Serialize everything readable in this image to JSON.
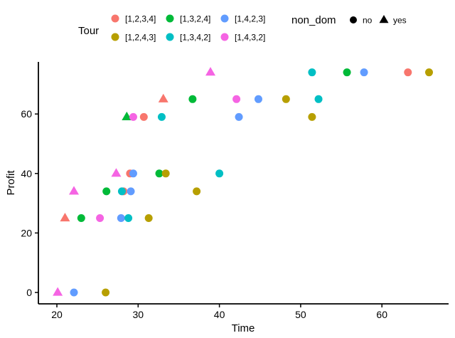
{
  "chart_data": {
    "type": "scatter",
    "title": "",
    "xlabel": "Time",
    "ylabel": "Profit",
    "xlim": [
      17.8,
      68.5
    ],
    "ylim": [
      -3.8,
      77
    ],
    "x_ticks": [
      20,
      30,
      40,
      50,
      60
    ],
    "y_ticks": [
      0,
      20,
      40,
      60
    ],
    "grid": false,
    "legend_position": "top",
    "color_legend": {
      "title": "Tour",
      "entries": [
        {
          "label": "[1,2,3,4]",
          "color": "#F8766D"
        },
        {
          "label": "[1,3,2,4]",
          "color": "#00BA38"
        },
        {
          "label": "[1,4,2,3]",
          "color": "#619CFF"
        },
        {
          "label": "[1,2,4,3]",
          "color": "#B79F00"
        },
        {
          "label": "[1,3,4,2]",
          "color": "#00BFC4"
        },
        {
          "label": "[1,4,3,2]",
          "color": "#F564E3"
        }
      ]
    },
    "shape_legend": {
      "title": "non_dom",
      "entries": [
        {
          "label": "no",
          "shape": "circle"
        },
        {
          "label": "yes",
          "shape": "triangle"
        }
      ]
    },
    "series": [
      {
        "name": "[1,2,3,4]",
        "color": "#F8766D",
        "points": [
          {
            "x": 21.0,
            "y": 25,
            "non_dom": "yes"
          },
          {
            "x": 28.2,
            "y": 34,
            "non_dom": "no"
          },
          {
            "x": 29.0,
            "y": 40,
            "non_dom": "no"
          },
          {
            "x": 30.7,
            "y": 59,
            "non_dom": "no"
          },
          {
            "x": 33.1,
            "y": 65,
            "non_dom": "yes"
          },
          {
            "x": 63.2,
            "y": 74,
            "non_dom": "no"
          }
        ]
      },
      {
        "name": "[1,3,2,4]",
        "color": "#00BA38",
        "points": [
          {
            "x": 23.0,
            "y": 25,
            "non_dom": "no"
          },
          {
            "x": 26.1,
            "y": 34,
            "non_dom": "no"
          },
          {
            "x": 32.6,
            "y": 40,
            "non_dom": "no"
          },
          {
            "x": 28.6,
            "y": 59,
            "non_dom": "yes"
          },
          {
            "x": 36.7,
            "y": 65,
            "non_dom": "no"
          },
          {
            "x": 55.7,
            "y": 74,
            "non_dom": "no"
          }
        ]
      },
      {
        "name": "[1,4,2,3]",
        "color": "#619CFF",
        "points": [
          {
            "x": 22.1,
            "y": 0,
            "non_dom": "no"
          },
          {
            "x": 27.9,
            "y": 25,
            "non_dom": "no"
          },
          {
            "x": 29.1,
            "y": 34,
            "non_dom": "no"
          },
          {
            "x": 29.4,
            "y": 40,
            "non_dom": "no"
          },
          {
            "x": 42.4,
            "y": 59,
            "non_dom": "no"
          },
          {
            "x": 44.8,
            "y": 65,
            "non_dom": "no"
          },
          {
            "x": 57.8,
            "y": 74,
            "non_dom": "no"
          }
        ]
      },
      {
        "name": "[1,2,4,3]",
        "color": "#B79F00",
        "points": [
          {
            "x": 26.0,
            "y": 0,
            "non_dom": "no"
          },
          {
            "x": 31.3,
            "y": 25,
            "non_dom": "no"
          },
          {
            "x": 37.2,
            "y": 34,
            "non_dom": "no"
          },
          {
            "x": 33.4,
            "y": 40,
            "non_dom": "no"
          },
          {
            "x": 51.4,
            "y": 59,
            "non_dom": "no"
          },
          {
            "x": 48.2,
            "y": 65,
            "non_dom": "no"
          },
          {
            "x": 65.8,
            "y": 74,
            "non_dom": "no"
          }
        ]
      },
      {
        "name": "[1,3,4,2]",
        "color": "#00BFC4",
        "points": [
          {
            "x": 28.8,
            "y": 25,
            "non_dom": "no"
          },
          {
            "x": 28.0,
            "y": 34,
            "non_dom": "no"
          },
          {
            "x": 40.0,
            "y": 40,
            "non_dom": "no"
          },
          {
            "x": 32.9,
            "y": 59,
            "non_dom": "no"
          },
          {
            "x": 52.2,
            "y": 65,
            "non_dom": "no"
          },
          {
            "x": 51.4,
            "y": 74,
            "non_dom": "no"
          }
        ]
      },
      {
        "name": "[1,4,3,2]",
        "color": "#F564E3",
        "points": [
          {
            "x": 20.1,
            "y": 0,
            "non_dom": "yes"
          },
          {
            "x": 25.3,
            "y": 25,
            "non_dom": "no"
          },
          {
            "x": 22.1,
            "y": 34,
            "non_dom": "yes"
          },
          {
            "x": 27.3,
            "y": 40,
            "non_dom": "yes"
          },
          {
            "x": 29.4,
            "y": 59,
            "non_dom": "no"
          },
          {
            "x": 42.1,
            "y": 65,
            "non_dom": "no"
          },
          {
            "x": 38.9,
            "y": 74,
            "non_dom": "yes"
          }
        ]
      }
    ]
  }
}
